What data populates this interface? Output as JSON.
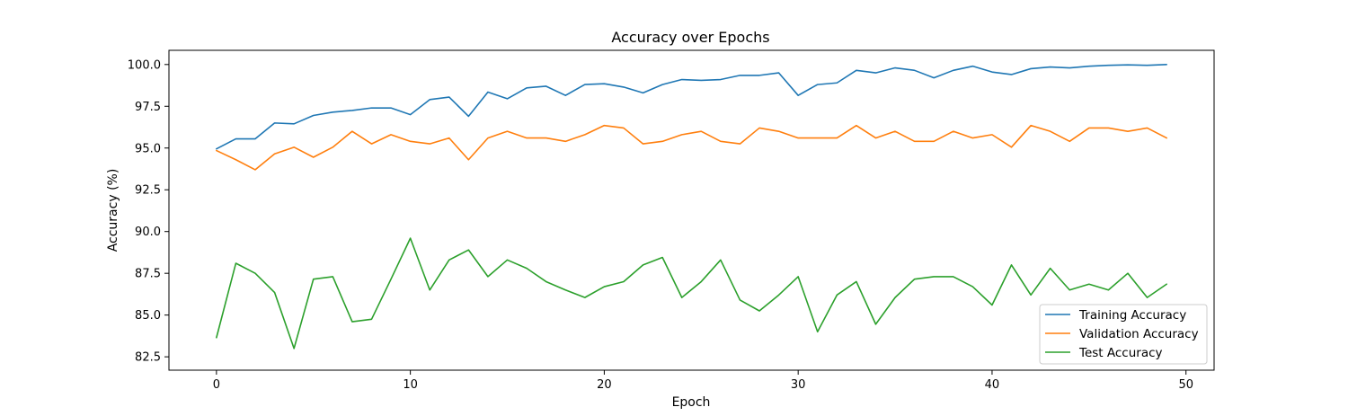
{
  "chart_data": {
    "type": "line",
    "title": "Accuracy over Epochs",
    "xlabel": "Epoch",
    "ylabel": "Accuracy (%)",
    "xlim": [
      -2.45,
      51.45
    ],
    "ylim": [
      81.7,
      100.85
    ],
    "xticks": [
      0,
      10,
      20,
      30,
      40,
      50
    ],
    "xtick_labels": [
      "0",
      "10",
      "20",
      "30",
      "40",
      "50"
    ],
    "yticks": [
      82.5,
      85.0,
      87.5,
      90.0,
      92.5,
      95.0,
      97.5,
      100.0
    ],
    "ytick_labels": [
      "82.5",
      "85.0",
      "87.5",
      "90.0",
      "92.5",
      "95.0",
      "97.5",
      "100.0"
    ],
    "grid": false,
    "legend_position": "lower-right",
    "x": [
      0,
      1,
      2,
      3,
      4,
      5,
      6,
      7,
      8,
      9,
      10,
      11,
      12,
      13,
      14,
      15,
      16,
      17,
      18,
      19,
      20,
      21,
      22,
      23,
      24,
      25,
      26,
      27,
      28,
      29,
      30,
      31,
      32,
      33,
      34,
      35,
      36,
      37,
      38,
      39,
      40,
      41,
      42,
      43,
      44,
      45,
      46,
      47,
      48,
      49
    ],
    "series": [
      {
        "name": "Training Accuracy",
        "color": "#1f77b4",
        "values": [
          94.95,
          95.55,
          95.55,
          96.5,
          96.45,
          96.95,
          97.15,
          97.25,
          97.4,
          97.4,
          97.0,
          97.9,
          98.05,
          96.9,
          98.35,
          97.95,
          98.6,
          98.7,
          98.15,
          98.8,
          98.85,
          98.65,
          98.3,
          98.8,
          99.1,
          99.05,
          99.1,
          99.35,
          99.35,
          99.5,
          98.15,
          98.8,
          98.9,
          99.65,
          99.5,
          99.8,
          99.65,
          99.2,
          99.65,
          99.9,
          99.55,
          99.4,
          99.75,
          99.85,
          99.8,
          99.9,
          99.95,
          99.98,
          99.95,
          100.0
        ]
      },
      {
        "name": "Validation Accuracy",
        "color": "#ff7f0e",
        "values": [
          94.85,
          94.3,
          93.7,
          94.65,
          95.05,
          94.45,
          95.05,
          96.0,
          95.25,
          95.8,
          95.4,
          95.25,
          95.6,
          94.3,
          95.6,
          96.0,
          95.6,
          95.6,
          95.4,
          95.8,
          96.35,
          96.2,
          95.25,
          95.4,
          95.8,
          96.0,
          95.4,
          95.25,
          96.2,
          96.0,
          95.6,
          95.6,
          95.6,
          96.35,
          95.6,
          96.0,
          95.4,
          95.4,
          96.0,
          95.6,
          95.8,
          95.05,
          96.35,
          96.0,
          95.4,
          96.2,
          96.2,
          96.0,
          96.2,
          95.6
        ]
      },
      {
        "name": "Test Accuracy",
        "color": "#2ca02c",
        "values": [
          83.65,
          88.1,
          87.5,
          86.35,
          83.0,
          87.15,
          87.3,
          84.6,
          84.75,
          87.15,
          89.6,
          86.5,
          88.3,
          88.9,
          87.3,
          88.3,
          87.8,
          87.0,
          86.5,
          86.05,
          86.7,
          87.0,
          88.0,
          88.45,
          86.05,
          87.0,
          88.3,
          85.9,
          85.25,
          86.2,
          87.3,
          84.0,
          86.2,
          87.0,
          84.45,
          86.05,
          87.15,
          87.3,
          87.3,
          86.7,
          85.6,
          88.0,
          86.2,
          87.8,
          86.5,
          86.85,
          86.5,
          87.5,
          86.05,
          86.85
        ]
      }
    ]
  }
}
